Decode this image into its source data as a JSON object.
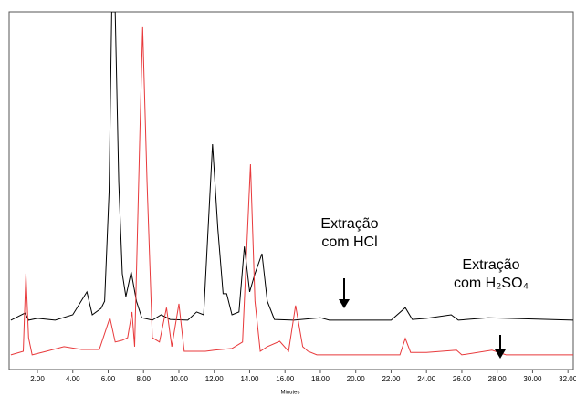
{
  "chart_data": {
    "type": "line",
    "x_label": "Minutes",
    "xlim": [
      0.4,
      32.3
    ],
    "ylim": [
      0,
      100
    ],
    "xticks": [
      {
        "value": 2,
        "label": "2.00"
      },
      {
        "value": 4,
        "label": "4.00"
      },
      {
        "value": 6,
        "label": "6.00"
      },
      {
        "value": 8,
        "label": "8.00"
      },
      {
        "value": 10,
        "label": "10.00"
      },
      {
        "value": 12,
        "label": "12.00"
      },
      {
        "value": 14,
        "label": "14.00"
      },
      {
        "value": 16,
        "label": "16.00"
      },
      {
        "value": 18,
        "label": "18.00"
      },
      {
        "value": 20,
        "label": "20.00"
      },
      {
        "value": 22,
        "label": "22.00"
      },
      {
        "value": 24,
        "label": "24.00"
      },
      {
        "value": 26,
        "label": "26.00"
      },
      {
        "value": 28,
        "label": "28.00"
      },
      {
        "value": 30,
        "label": "30.00"
      },
      {
        "value": 32,
        "label": "32.00"
      }
    ],
    "annotations": [
      {
        "lines": [
          "Extração",
          "com HCl"
        ]
      },
      {
        "lines": [
          "Extração",
          "com H₂SO₄"
        ]
      }
    ],
    "series": [
      {
        "color": "#000000",
        "x": [
          0.5,
          1.3,
          1.5,
          2.0,
          3.0,
          4.0,
          4.8,
          5.1,
          5.6,
          5.8,
          6.05,
          6.2,
          6.4,
          6.6,
          6.8,
          7.0,
          7.3,
          7.6,
          7.9,
          8.5,
          9.0,
          9.5,
          10.5,
          11.0,
          11.4,
          11.9,
          12.2,
          12.5,
          12.7,
          13.0,
          13.4,
          13.7,
          14.0,
          14.3,
          14.7,
          15.0,
          15.4,
          16.5,
          18.0,
          18.5,
          22.0,
          22.8,
          23.2,
          24.0,
          25.4,
          25.8,
          27.5,
          32.3
        ],
        "values": [
          13.8,
          15.8,
          13.8,
          14.3,
          13.8,
          15.3,
          21.7,
          15.3,
          17.1,
          19.1,
          49.7,
          100,
          100,
          52.3,
          26.8,
          20.4,
          27.3,
          19.1,
          14.5,
          13.8,
          15.3,
          14.0,
          13.8,
          16.1,
          15.3,
          63.0,
          39.5,
          21.2,
          21.2,
          15.3,
          16.1,
          34.4,
          21.7,
          26.8,
          32.4,
          19.1,
          14.0,
          13.8,
          14.5,
          13.8,
          13.8,
          17.3,
          14.0,
          14.3,
          15.3,
          13.8,
          14.5,
          13.8
        ]
      },
      {
        "color": "#e8393b",
        "x": [
          0.5,
          1.2,
          1.35,
          1.5,
          1.7,
          2.5,
          3.5,
          4.5,
          5.5,
          6.1,
          6.4,
          6.8,
          7.1,
          7.35,
          7.5,
          7.8,
          7.95,
          8.2,
          8.5,
          8.9,
          9.3,
          9.6,
          10.0,
          10.3,
          11.5,
          12.0,
          13.0,
          13.6,
          14.05,
          14.3,
          14.6,
          15.0,
          15.7,
          16.2,
          16.6,
          17.0,
          17.3,
          17.8,
          22.5,
          22.8,
          23.1,
          24.0,
          25.7,
          26.0,
          27.7,
          28.5,
          32.3
        ],
        "values": [
          4.1,
          5.1,
          26.8,
          8.9,
          4.1,
          5.1,
          6.4,
          5.6,
          5.6,
          14.5,
          7.7,
          8.2,
          8.9,
          16.1,
          6.4,
          67.6,
          95.7,
          52.3,
          8.9,
          7.7,
          17.3,
          6.4,
          18.4,
          5.1,
          5.1,
          5.4,
          5.9,
          7.7,
          57.4,
          19.1,
          5.1,
          6.4,
          7.9,
          5.1,
          17.9,
          6.4,
          5.1,
          4.1,
          4.1,
          8.7,
          4.8,
          4.8,
          5.4,
          4.1,
          5.4,
          4.1,
          4.1
        ]
      }
    ]
  }
}
